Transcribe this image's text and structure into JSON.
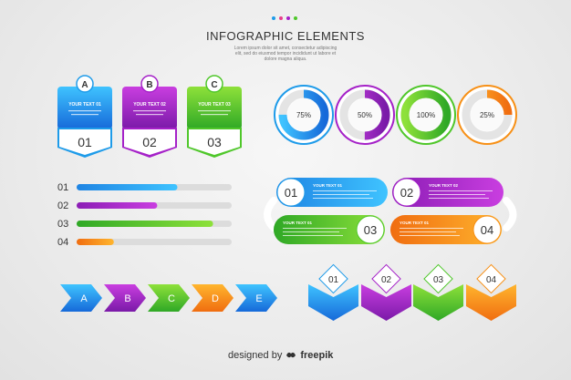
{
  "header": {
    "title": "INFOGRAPHIC ELEMENTS",
    "subtitle": "Lorem ipsum dolor sit amet, consectetur adipiscing elit, sed do eiusmod tempor incididunt ut labore et dolore magna aliqua."
  },
  "colors": {
    "blue": "#1e9be9",
    "purple": "#a521c8",
    "green": "#4fc72a",
    "orange": "#f79016",
    "dot_colors": [
      "#1e9be9",
      "#e83e8c",
      "#a521c8",
      "#4fc72a"
    ]
  },
  "badges": [
    {
      "letter": "A",
      "text": "YOUR TEXT 01",
      "number": "01",
      "color": "blue"
    },
    {
      "letter": "B",
      "text": "YOUR TEXT 02",
      "number": "02",
      "color": "purple"
    },
    {
      "letter": "C",
      "text": "YOUR TEXT 03",
      "number": "03",
      "color": "green"
    }
  ],
  "rings": [
    {
      "label": "75%",
      "progress": 0.75,
      "color": "blue"
    },
    {
      "label": "50%",
      "progress": 0.5,
      "color": "purple"
    },
    {
      "label": "100%",
      "progress": 1.0,
      "color": "green"
    },
    {
      "label": "25%",
      "progress": 0.25,
      "color": "orange"
    }
  ],
  "bars": [
    {
      "label": "01",
      "fill": 0.65,
      "color": "blue"
    },
    {
      "label": "02",
      "fill": 0.52,
      "color": "purple"
    },
    {
      "label": "03",
      "fill": 0.88,
      "color": "green"
    },
    {
      "label": "04",
      "fill": 0.24,
      "color": "orange"
    }
  ],
  "pills": [
    {
      "number": "01",
      "text": "YOUR TEXT 01",
      "color": "blue"
    },
    {
      "number": "02",
      "text": "YOUR TEXT 02",
      "color": "purple"
    },
    {
      "number": "03",
      "text": "YOUR TEXT 01",
      "color": "green"
    },
    {
      "number": "04",
      "text": "YOUR TEXT 01",
      "color": "orange"
    }
  ],
  "arrows": [
    {
      "letter": "A",
      "color": "blue"
    },
    {
      "letter": "B",
      "color": "purple"
    },
    {
      "letter": "C",
      "color": "green"
    },
    {
      "letter": "D",
      "color": "orange"
    },
    {
      "letter": "E",
      "color": "blue"
    }
  ],
  "ribbons": [
    {
      "number": "01",
      "color": "blue"
    },
    {
      "number": "02",
      "color": "purple"
    },
    {
      "number": "03",
      "color": "green"
    },
    {
      "number": "04",
      "color": "orange"
    }
  ],
  "footer": {
    "prefix": "designed by",
    "brand": "freepik",
    "brand_icon": "freepik-logo-icon"
  }
}
